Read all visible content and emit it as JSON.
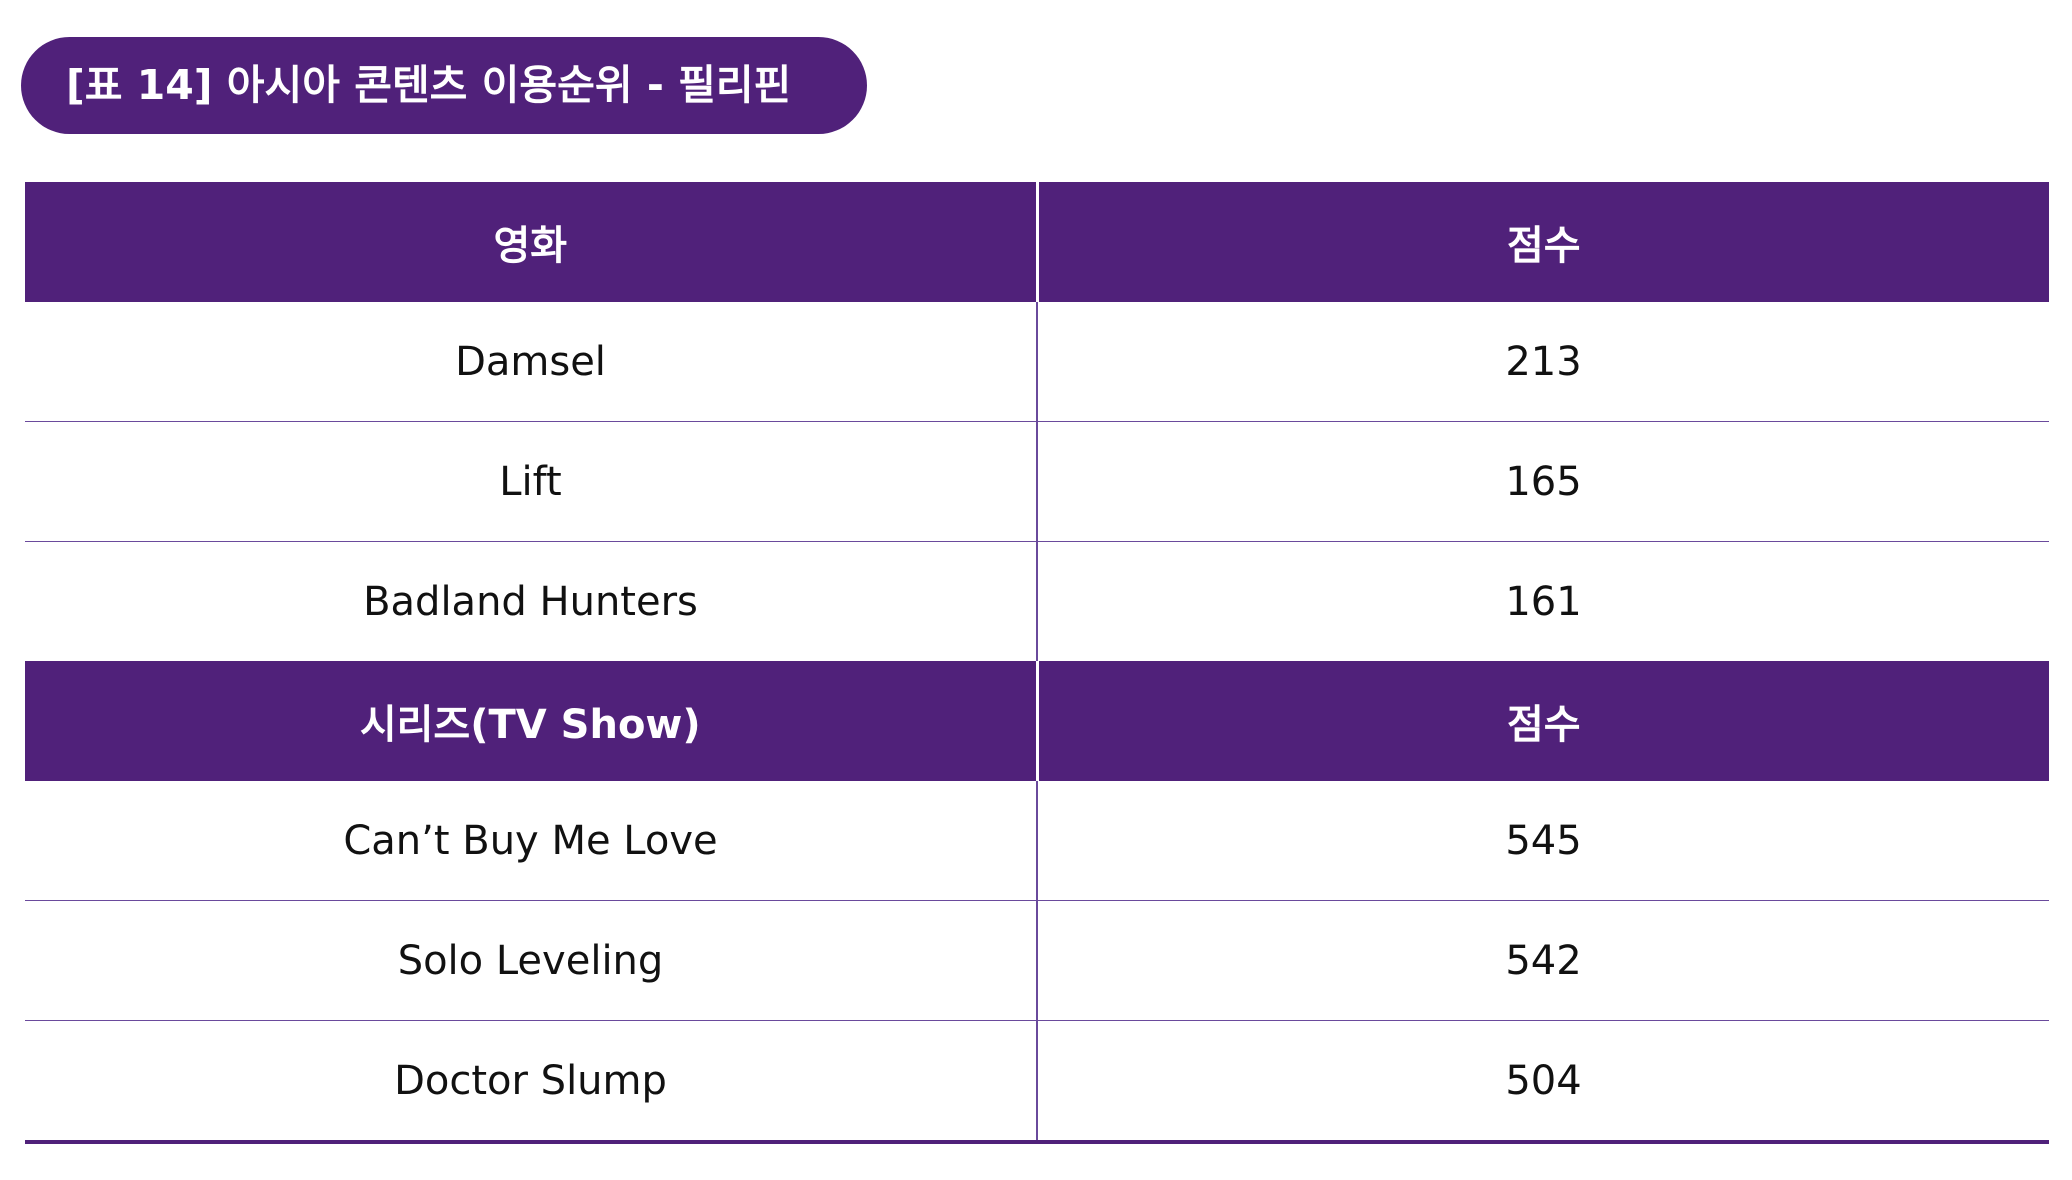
{
  "title": "[표 14] 아시아 콘텐츠 이용순위 - 필리핀",
  "colors": {
    "header_bg": "#50217a",
    "rule": "#6a4a9c"
  },
  "sections": [
    {
      "header": {
        "category": "영화",
        "score": "점수"
      },
      "rows": [
        {
          "title": "Damsel",
          "score": "213"
        },
        {
          "title": "Lift",
          "score": "165"
        },
        {
          "title": "Badland Hunters",
          "score": "161"
        }
      ]
    },
    {
      "header": {
        "category": "시리즈(TV Show)",
        "score": "점수"
      },
      "rows": [
        {
          "title": "Can’t Buy Me Love",
          "score": "545"
        },
        {
          "title": "Solo Leveling",
          "score": "542"
        },
        {
          "title": "Doctor Slump",
          "score": "504"
        }
      ]
    }
  ]
}
